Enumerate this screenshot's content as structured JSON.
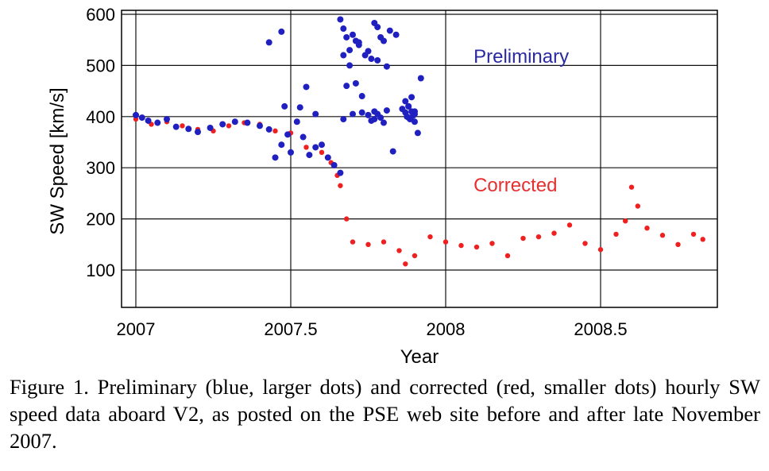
{
  "chart_data": {
    "type": "scatter",
    "title": "",
    "xlabel": "Year",
    "ylabel": "SW Speed [km/s]",
    "xlim": [
      2007.0,
      2008.85
    ],
    "ylim": [
      30,
      605
    ],
    "xticks": [
      "2007",
      "2007.5",
      "2008",
      "2008.5"
    ],
    "xtick_values": [
      2007.0,
      2007.5,
      2008.0,
      2008.5
    ],
    "yticks": [
      "600",
      "500",
      "400",
      "300",
      "200",
      "100"
    ],
    "ytick_values": [
      600,
      500,
      400,
      300,
      200,
      100
    ],
    "grid": true,
    "annotations": [
      {
        "text": "Preliminary",
        "color": "#2a2aa0",
        "x": 2008.09,
        "y": 505
      },
      {
        "text": "Corrected",
        "color": "#e53030",
        "x": 2008.09,
        "y": 254
      }
    ],
    "series": [
      {
        "color": "#2020c0",
        "marker": "large-dot",
        "x": [
          2007.0,
          2007.02,
          2007.04,
          2007.07,
          2007.1,
          2007.13,
          2007.17,
          2007.2,
          2007.24,
          2007.28,
          2007.32,
          2007.36,
          2007.4,
          2007.43,
          2007.45,
          2007.47,
          2007.49,
          2007.5,
          2007.52,
          2007.54,
          2007.56,
          2007.58,
          2007.6,
          2007.62,
          2007.64,
          2007.66,
          2007.43,
          2007.47,
          2007.53,
          2007.55,
          2007.48,
          2007.58,
          2007.66,
          2007.67,
          2007.68,
          2007.69,
          2007.7,
          2007.71,
          2007.72,
          2007.74,
          2007.76,
          2007.77,
          2007.78,
          2007.79,
          2007.8,
          2007.82,
          2007.84,
          2007.67,
          2007.69,
          2007.72,
          2007.75,
          2007.78,
          2007.81,
          2007.68,
          2007.71,
          2007.73,
          2007.77,
          2007.8,
          2007.76,
          2007.78,
          2007.81,
          2007.67,
          2007.7,
          2007.73,
          2007.75,
          2007.77,
          2007.79,
          2007.83,
          2007.86,
          2007.87,
          2007.875,
          2007.88,
          2007.885,
          2007.89,
          2007.895,
          2007.9,
          2007.87,
          2007.88,
          2007.89,
          2007.9,
          2007.88,
          2007.9,
          2007.91,
          2007.92
        ],
        "y": [
          403,
          398,
          392,
          388,
          395,
          380,
          376,
          370,
          378,
          385,
          390,
          388,
          382,
          375,
          320,
          345,
          365,
          330,
          390,
          360,
          325,
          340,
          345,
          320,
          305,
          290,
          545,
          566,
          418,
          458,
          420,
          405,
          590,
          572,
          555,
          530,
          560,
          548,
          540,
          520,
          513,
          583,
          575,
          555,
          548,
          568,
          560,
          520,
          500,
          545,
          528,
          510,
          498,
          460,
          465,
          440,
          410,
          388,
          392,
          405,
          412,
          395,
          405,
          408,
          403,
          395,
          398,
          332,
          415,
          408,
          400,
          420,
          395,
          410,
          402,
          390,
          430,
          420,
          438,
          410,
          398,
          405,
          368,
          475
        ]
      },
      {
        "color": "#ee2020",
        "marker": "small-dot",
        "x": [
          2007.0,
          2007.05,
          2007.1,
          2007.15,
          2007.2,
          2007.25,
          2007.3,
          2007.35,
          2007.4,
          2007.45,
          2007.5,
          2007.55,
          2007.6,
          2007.63,
          2007.65,
          2007.66,
          2007.68,
          2007.7,
          2007.75,
          2007.8,
          2007.85,
          2007.87,
          2007.9,
          2007.95,
          2008.0,
          2008.05,
          2008.1,
          2008.15,
          2008.2,
          2008.25,
          2008.3,
          2008.35,
          2008.4,
          2008.45,
          2008.5,
          2008.55,
          2008.58,
          2008.6,
          2008.62,
          2008.65,
          2008.7,
          2008.75,
          2008.8,
          2008.83
        ],
        "y": [
          395,
          385,
          390,
          382,
          375,
          372,
          382,
          388,
          385,
          372,
          368,
          340,
          330,
          310,
          285,
          265,
          200,
          155,
          150,
          155,
          138,
          112,
          128,
          165,
          155,
          148,
          145,
          152,
          128,
          162,
          165,
          172,
          188,
          152,
          140,
          170,
          196,
          262,
          225,
          182,
          168,
          150,
          170,
          160
        ]
      }
    ]
  },
  "caption": "Figure 1. Preliminary (blue, larger dots) and corrected (red, smaller dots) hourly SW speed data aboard V2, as posted on the PSE web site before and after late November 2007."
}
